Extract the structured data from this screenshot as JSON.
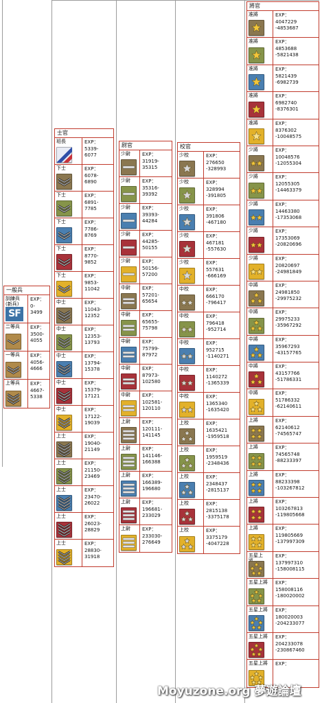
{
  "groups": [
    {
      "id": "ippan",
      "title": "一般兵",
      "ranks": [
        {
          "name": "訓練兵\n(新兵)",
          "exp_label": "EXP：",
          "range": "0-\n3499",
          "badge": {
            "kind": "sf",
            "text": "SF",
            "color": "#3d73a6"
          }
        },
        {
          "name": "二等兵",
          "exp_label": "EXP：",
          "range": "3500-\n4055",
          "badge": {
            "kind": "chevron",
            "count": 1,
            "color": "#b08a4a"
          }
        },
        {
          "name": "一等兵",
          "exp_label": "EXP：",
          "range": "4056-\n4666",
          "badge": {
            "kind": "chevron",
            "count": 2,
            "color": "#b08a4a"
          }
        },
        {
          "name": "上等兵",
          "exp_label": "EXP：",
          "range": "4667-\n5338",
          "badge": {
            "kind": "chevron",
            "count": 3,
            "color": "#b08a4a"
          }
        }
      ]
    },
    {
      "id": "shikan",
      "title": "士官",
      "ranks": [
        {
          "name": "班長",
          "exp_label": "EXP：",
          "range": "5339-\n6077",
          "badge": {
            "kind": "stripe",
            "color": "#e9ecf5"
          }
        },
        {
          "name": "下士",
          "exp_label": "EXP：",
          "range": "6078-\n6890",
          "badge": {
            "kind": "chevron",
            "count": 2,
            "color": "#8a7750"
          }
        },
        {
          "name": "下士",
          "exp_label": "EXP：",
          "range": "6891-\n7785",
          "badge": {
            "kind": "chevron",
            "count": 2,
            "color": "#86944a"
          }
        },
        {
          "name": "下士",
          "exp_label": "EXP：",
          "range": "7786-\n8769",
          "badge": {
            "kind": "chevron",
            "count": 2,
            "color": "#4a7fb0"
          }
        },
        {
          "name": "下士",
          "exp_label": "EXP：",
          "range": "8770-\n9852",
          "badge": {
            "kind": "chevron",
            "count": 2,
            "color": "#a8323a"
          }
        },
        {
          "name": "下士",
          "exp_label": "EXP：",
          "range": "9853-\n11042",
          "badge": {
            "kind": "chevron",
            "count": 2,
            "color": "#e2b12a"
          }
        },
        {
          "name": "中士",
          "exp_label": "EXP：",
          "range": "11043-\n12352",
          "badge": {
            "kind": "chevron",
            "count": 3,
            "color": "#8a7750"
          }
        },
        {
          "name": "中士",
          "exp_label": "EXP：",
          "range": "12353-\n13793",
          "badge": {
            "kind": "chevron",
            "count": 3,
            "color": "#86944a"
          }
        },
        {
          "name": "中士",
          "exp_label": "EXP：",
          "range": "13794-\n15378",
          "badge": {
            "kind": "chevron",
            "count": 3,
            "color": "#4a7fb0"
          }
        },
        {
          "name": "中士",
          "exp_label": "EXP：",
          "range": "15379-\n17121",
          "badge": {
            "kind": "chevron",
            "count": 3,
            "color": "#a8323a"
          }
        },
        {
          "name": "中士",
          "exp_label": "EXP：",
          "range": "17122-\n19039",
          "badge": {
            "kind": "chevron",
            "count": 3,
            "color": "#e2b12a"
          }
        },
        {
          "name": "上士",
          "exp_label": "EXP：",
          "range": "19040-\n21149",
          "badge": {
            "kind": "chevron",
            "count": 4,
            "color": "#8a7750"
          }
        },
        {
          "name": "上士",
          "exp_label": "EXP：",
          "range": "21150-\n23469",
          "badge": {
            "kind": "chevron",
            "count": 4,
            "color": "#86944a"
          }
        },
        {
          "name": "上士",
          "exp_label": "EXP：",
          "range": "23470-\n26022",
          "badge": {
            "kind": "chevron",
            "count": 4,
            "color": "#4a7fb0"
          }
        },
        {
          "name": "上士",
          "exp_label": "EXP：",
          "range": "26023-\n28829",
          "badge": {
            "kind": "chevron",
            "count": 4,
            "color": "#a8323a"
          }
        },
        {
          "name": "上士",
          "exp_label": "EXP：",
          "range": "28830-\n31918",
          "badge": {
            "kind": "chevron",
            "count": 4,
            "color": "#e2b12a"
          }
        }
      ]
    },
    {
      "id": "ikan",
      "title": "尉官",
      "ranks": [
        {
          "name": "少尉",
          "exp_label": "EXP：",
          "range": "31919-\n35315",
          "badge": {
            "kind": "bar",
            "count": 1,
            "color": "#8a7750"
          }
        },
        {
          "name": "少尉",
          "exp_label": "EXP：",
          "range": "35316-\n39392",
          "badge": {
            "kind": "bar",
            "count": 1,
            "color": "#86944a"
          }
        },
        {
          "name": "少尉",
          "exp_label": "EXP：",
          "range": "39393-\n44284",
          "badge": {
            "kind": "bar",
            "count": 1,
            "color": "#4a7fb0"
          }
        },
        {
          "name": "少尉",
          "exp_label": "EXP：",
          "range": "44285-\n50155",
          "badge": {
            "kind": "bar",
            "count": 1,
            "color": "#a8323a"
          }
        },
        {
          "name": "少尉",
          "exp_label": "EXP：",
          "range": "50156-\n57200",
          "badge": {
            "kind": "bar",
            "count": 1,
            "color": "#e2b12a"
          }
        },
        {
          "name": "中尉",
          "exp_label": "EXP：",
          "range": "57201-\n65654",
          "badge": {
            "kind": "bar",
            "count": 2,
            "color": "#8a7750"
          }
        },
        {
          "name": "中尉",
          "exp_label": "EXP：",
          "range": "65655-\n75798",
          "badge": {
            "kind": "bar",
            "count": 2,
            "color": "#86944a"
          }
        },
        {
          "name": "中尉",
          "exp_label": "EXP：",
          "range": "75799-\n87972",
          "badge": {
            "kind": "bar",
            "count": 2,
            "color": "#4a7fb0"
          }
        },
        {
          "name": "中尉",
          "exp_label": "EXP：",
          "range": "87973-\n102580",
          "badge": {
            "kind": "bar",
            "count": 2,
            "color": "#a8323a"
          }
        },
        {
          "name": "中尉",
          "exp_label": "EXP：",
          "range": "102581-\n120110",
          "badge": {
            "kind": "bar",
            "count": 2,
            "color": "#e2b12a"
          }
        },
        {
          "name": "上尉",
          "exp_label": "EXP：",
          "range": "120111-\n141145",
          "badge": {
            "kind": "bar",
            "count": 3,
            "color": "#8a7750"
          }
        },
        {
          "name": "上尉",
          "exp_label": "EXP：",
          "range": "141146-\n166388",
          "badge": {
            "kind": "bar",
            "count": 3,
            "color": "#86944a"
          }
        },
        {
          "name": "上尉",
          "exp_label": "EXP：",
          "range": "166389-\n196680",
          "badge": {
            "kind": "bar",
            "count": 3,
            "color": "#4a7fb0"
          }
        },
        {
          "name": "上尉",
          "exp_label": "EXP：",
          "range": "196681-\n233029",
          "badge": {
            "kind": "bar",
            "count": 3,
            "color": "#a8323a"
          }
        },
        {
          "name": "上尉",
          "exp_label": "EXP：",
          "range": "233030-\n276649",
          "badge": {
            "kind": "bar",
            "count": 3,
            "color": "#e2b12a"
          }
        }
      ]
    },
    {
      "id": "kokan",
      "title": "校官",
      "ranks": [
        {
          "name": "少校",
          "exp_label": "EXP：",
          "range": "276650\n-328993",
          "badge": {
            "kind": "star",
            "count": 1,
            "color": "#8a7750",
            "star": "#d8d8d8"
          }
        },
        {
          "name": "少校",
          "exp_label": "EXP：",
          "range": "328994\n-391805",
          "badge": {
            "kind": "star",
            "count": 1,
            "color": "#86944a",
            "star": "#d8d8d8"
          }
        },
        {
          "name": "少校",
          "exp_label": "EXP：",
          "range": "391806\n-467180",
          "badge": {
            "kind": "star",
            "count": 1,
            "color": "#4a7fb0",
            "star": "#d8d8d8"
          }
        },
        {
          "name": "少校",
          "exp_label": "EXP：",
          "range": "467181\n-557630",
          "badge": {
            "kind": "star",
            "count": 1,
            "color": "#a8323a",
            "star": "#d8d8d8"
          }
        },
        {
          "name": "少校",
          "exp_label": "EXP：",
          "range": "557631\n-666169",
          "badge": {
            "kind": "star",
            "count": 1,
            "color": "#e2b12a",
            "star": "#d8d8d8"
          }
        },
        {
          "name": "中校",
          "exp_label": "EXP：",
          "range": "666170\n-796417",
          "badge": {
            "kind": "star",
            "count": 2,
            "color": "#8a7750",
            "star": "#d8d8d8"
          }
        },
        {
          "name": "中校",
          "exp_label": "EXP：",
          "range": "796418\n-952714",
          "badge": {
            "kind": "star",
            "count": 2,
            "color": "#86944a",
            "star": "#d8d8d8"
          }
        },
        {
          "name": "中校",
          "exp_label": "EXP：",
          "range": "952715\n-1140271",
          "badge": {
            "kind": "star",
            "count": 2,
            "color": "#4a7fb0",
            "star": "#d8d8d8"
          }
        },
        {
          "name": "中校",
          "exp_label": "EXP：",
          "range": "1140272\n-1365339",
          "badge": {
            "kind": "star",
            "count": 2,
            "color": "#a8323a",
            "star": "#d8d8d8"
          }
        },
        {
          "name": "中校",
          "exp_label": "EXP：",
          "range": "1365340\n-1635420",
          "badge": {
            "kind": "star",
            "count": 2,
            "color": "#e2b12a",
            "star": "#d8d8d8"
          }
        },
        {
          "name": "上校",
          "exp_label": "EXP：",
          "range": "1635421\n-1959518",
          "badge": {
            "kind": "star",
            "count": 3,
            "color": "#8a7750",
            "star": "#d8d8d8"
          }
        },
        {
          "name": "上校",
          "exp_label": "EXP：",
          "range": "1959519\n-2348436",
          "badge": {
            "kind": "star",
            "count": 3,
            "color": "#86944a",
            "star": "#d8d8d8"
          }
        },
        {
          "name": "上校",
          "exp_label": "EXP：",
          "range": "2348437\n-2815137",
          "badge": {
            "kind": "star",
            "count": 3,
            "color": "#4a7fb0",
            "star": "#d8d8d8"
          }
        },
        {
          "name": "上校",
          "exp_label": "EXP：",
          "range": "2815138\n-3375178",
          "badge": {
            "kind": "star",
            "count": 3,
            "color": "#a8323a",
            "star": "#d8d8d8"
          }
        },
        {
          "name": "上校",
          "exp_label": "EXP：",
          "range": "3375179\n-4047228",
          "badge": {
            "kind": "star",
            "count": 3,
            "color": "#e2b12a",
            "star": "#d8d8d8"
          }
        }
      ]
    },
    {
      "id": "shokan",
      "title": "將官",
      "ranks": [
        {
          "name": "准將",
          "exp_label": "EXP：",
          "range": "4047229\n-4853687",
          "badge": {
            "kind": "star",
            "count": 1,
            "color": "#8a7750",
            "star": "#f2c63a"
          }
        },
        {
          "name": "准將",
          "exp_label": "EXP：",
          "range": "4853688\n-5821438",
          "badge": {
            "kind": "star",
            "count": 1,
            "color": "#86944a",
            "star": "#f2c63a"
          }
        },
        {
          "name": "准將",
          "exp_label": "EXP：",
          "range": "5821439\n-6982739",
          "badge": {
            "kind": "star",
            "count": 1,
            "color": "#4a7fb0",
            "star": "#f2c63a"
          }
        },
        {
          "name": "准將",
          "exp_label": "EXP：",
          "range": "6982740\n-8376301",
          "badge": {
            "kind": "star",
            "count": 1,
            "color": "#a8323a",
            "star": "#f2c63a"
          }
        },
        {
          "name": "准將",
          "exp_label": "EXP：",
          "range": "8376302\n-10048575",
          "badge": {
            "kind": "star",
            "count": 1,
            "color": "#e2b12a",
            "star": "#f7e08a"
          }
        },
        {
          "name": "少將",
          "exp_label": "EXP：",
          "range": "10048576\n-12055304",
          "badge": {
            "kind": "star",
            "count": 2,
            "color": "#8a7750",
            "star": "#f2c63a"
          }
        },
        {
          "name": "少將",
          "exp_label": "EXP：",
          "range": "12055305\n-14463379",
          "badge": {
            "kind": "star",
            "count": 2,
            "color": "#86944a",
            "star": "#f2c63a"
          }
        },
        {
          "name": "少將",
          "exp_label": "EXP：",
          "range": "14463380\n-17353068",
          "badge": {
            "kind": "star",
            "count": 2,
            "color": "#4a7fb0",
            "star": "#f2c63a"
          }
        },
        {
          "name": "少將",
          "exp_label": "EXP：",
          "range": "17353069\n-20820696",
          "badge": {
            "kind": "star",
            "count": 2,
            "color": "#a8323a",
            "star": "#f2c63a"
          }
        },
        {
          "name": "少將",
          "exp_label": "EXP：",
          "range": "20820697\n-24981849",
          "badge": {
            "kind": "star",
            "count": 2,
            "color": "#e2b12a",
            "star": "#f7e08a"
          }
        },
        {
          "name": "中將",
          "exp_label": "EXP：",
          "range": "24981850\n-29975232",
          "badge": {
            "kind": "star",
            "count": 3,
            "color": "#8a7750",
            "star": "#f2c63a"
          }
        },
        {
          "name": "中將",
          "exp_label": "EXP：",
          "range": "29975233\n-35967292",
          "badge": {
            "kind": "star",
            "count": 3,
            "color": "#86944a",
            "star": "#f2c63a"
          }
        },
        {
          "name": "中將",
          "exp_label": "EXP：",
          "range": "35967293\n-43157765",
          "badge": {
            "kind": "star",
            "count": 3,
            "color": "#4a7fb0",
            "star": "#f2c63a"
          }
        },
        {
          "name": "中將",
          "exp_label": "EXP：",
          "range": "43157766\n-51786331",
          "badge": {
            "kind": "star",
            "count": 3,
            "color": "#a8323a",
            "star": "#f2c63a"
          }
        },
        {
          "name": "中將",
          "exp_label": "EXP：",
          "range": "51786332\n-62140611",
          "badge": {
            "kind": "star",
            "count": 3,
            "color": "#e2b12a",
            "star": "#f7e08a"
          }
        },
        {
          "name": "上將",
          "exp_label": "EXP：",
          "range": "62140612\n-74565747",
          "badge": {
            "kind": "star",
            "count": 4,
            "color": "#8a7750",
            "star": "#f2c63a"
          }
        },
        {
          "name": "上將",
          "exp_label": "EXP：",
          "range": "74565748\n-88233397",
          "badge": {
            "kind": "star",
            "count": 4,
            "color": "#86944a",
            "star": "#f2c63a"
          }
        },
        {
          "name": "上將",
          "exp_label": "EXP：",
          "range": "88233398\n-103267812",
          "badge": {
            "kind": "star",
            "count": 4,
            "color": "#4a7fb0",
            "star": "#f2c63a"
          }
        },
        {
          "name": "上將",
          "exp_label": "EXP：",
          "range": "103267813\n-119805668",
          "badge": {
            "kind": "star",
            "count": 4,
            "color": "#a8323a",
            "star": "#f2c63a"
          }
        },
        {
          "name": "上將",
          "exp_label": "EXP：",
          "range": "119805669\n-137997309",
          "badge": {
            "kind": "star",
            "count": 4,
            "color": "#e2b12a",
            "star": "#f7e08a"
          }
        },
        {
          "name": "五星上\n將",
          "exp_label": "EXP：",
          "range": "137997310\n-158008115",
          "badge": {
            "kind": "star",
            "count": 5,
            "color": "#8a7750",
            "star": "#f2c63a"
          }
        },
        {
          "name": "五星上將",
          "exp_label": "EXP：",
          "range": "158008116\n-180020002",
          "badge": {
            "kind": "star",
            "count": 5,
            "color": "#86944a",
            "star": "#f2c63a"
          }
        },
        {
          "name": "五星上將",
          "exp_label": "EXP：",
          "range": "180020003\n-204233077",
          "badge": {
            "kind": "star",
            "count": 5,
            "color": "#4a7fb0",
            "star": "#f2c63a"
          }
        },
        {
          "name": "五星上將",
          "exp_label": "EXP：",
          "range": "204233078\n-230867460",
          "badge": {
            "kind": "star",
            "count": 5,
            "color": "#a8323a",
            "star": "#f2c63a"
          }
        },
        {
          "name": "五星上將",
          "exp_label": "EXP：",
          "range": "",
          "badge": {
            "kind": "star",
            "count": 5,
            "color": "#e2b12a",
            "star": "#f7e08a"
          }
        }
      ]
    }
  ],
  "watermark": "Moyuzone.org 夢遊論壇",
  "colors": {
    "border": "#c0392b",
    "guide": "#9b9b9b"
  }
}
